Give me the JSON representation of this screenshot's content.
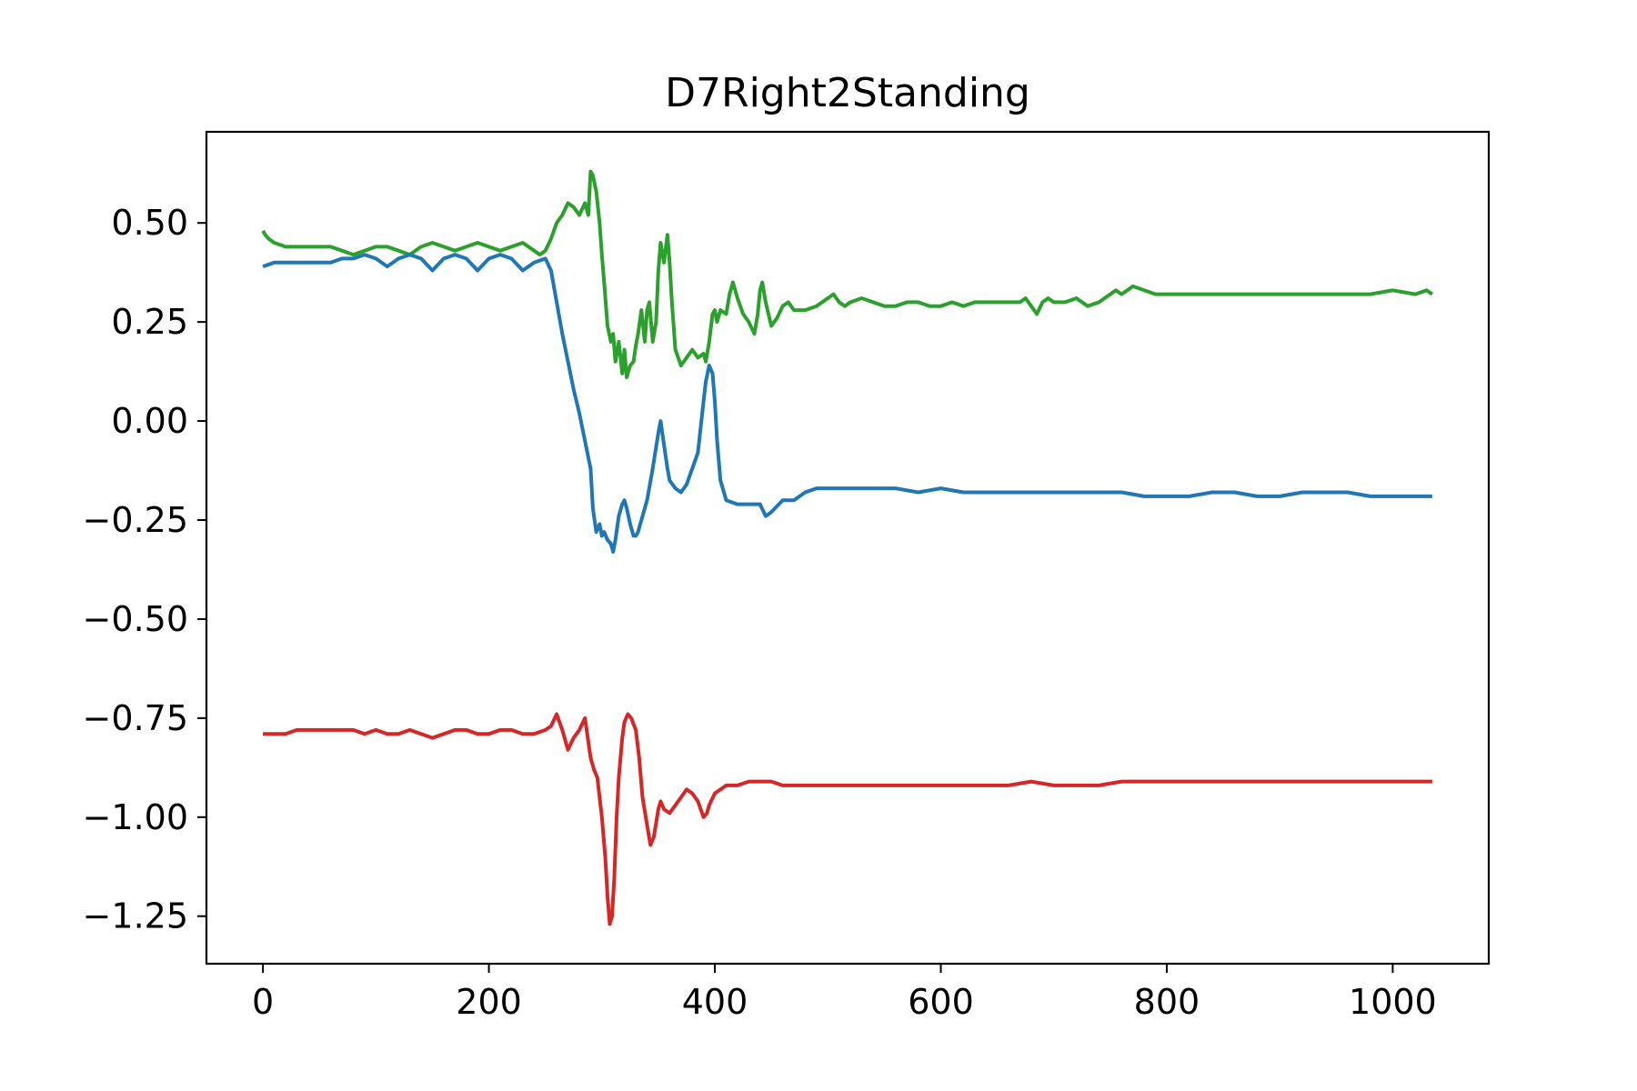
{
  "chart_data": {
    "type": "line",
    "title": "D7Right2Standing",
    "xlabel": "",
    "ylabel": "",
    "xlim": [
      -50,
      1085
    ],
    "ylim": [
      -1.37,
      0.73
    ],
    "grid": false,
    "legend": "none",
    "x_ticks": [
      {
        "value": 0,
        "label": "0"
      },
      {
        "value": 200,
        "label": "200"
      },
      {
        "value": 400,
        "label": "400"
      },
      {
        "value": 600,
        "label": "600"
      },
      {
        "value": 800,
        "label": "800"
      },
      {
        "value": 1000,
        "label": "1000"
      }
    ],
    "y_ticks": [
      {
        "value": 0.5,
        "label": "0.50"
      },
      {
        "value": 0.25,
        "label": "0.25"
      },
      {
        "value": 0.0,
        "label": "0.00"
      },
      {
        "value": -0.25,
        "label": "−0.25"
      },
      {
        "value": -0.5,
        "label": "−0.50"
      },
      {
        "value": -0.75,
        "label": "−0.75"
      },
      {
        "value": -1.0,
        "label": "−1.00"
      },
      {
        "value": -1.25,
        "label": "−1.25"
      }
    ],
    "series": [
      {
        "color": "#2ca02c",
        "x": [
          0,
          2,
          5,
          10,
          20,
          30,
          40,
          50,
          60,
          70,
          80,
          90,
          100,
          110,
          120,
          130,
          140,
          150,
          160,
          170,
          180,
          190,
          200,
          210,
          220,
          230,
          240,
          245,
          250,
          255,
          260,
          265,
          270,
          275,
          280,
          285,
          288,
          290,
          292,
          295,
          298,
          300,
          302,
          305,
          308,
          310,
          312,
          315,
          318,
          320,
          322,
          325,
          328,
          330,
          332,
          335,
          338,
          340,
          342,
          345,
          348,
          350,
          352,
          355,
          358,
          360,
          362,
          365,
          370,
          375,
          380,
          385,
          390,
          392,
          395,
          398,
          400,
          402,
          405,
          410,
          413,
          416,
          420,
          425,
          430,
          435,
          438,
          440,
          442,
          445,
          450,
          455,
          460,
          465,
          470,
          480,
          490,
          500,
          505,
          510,
          515,
          520,
          530,
          540,
          550,
          560,
          570,
          580,
          590,
          600,
          610,
          620,
          630,
          640,
          650,
          660,
          670,
          675,
          680,
          685,
          690,
          695,
          700,
          710,
          720,
          730,
          740,
          750,
          755,
          760,
          770,
          780,
          790,
          800,
          820,
          840,
          860,
          880,
          900,
          920,
          940,
          960,
          980,
          1000,
          1020,
          1030,
          1035
        ],
        "y": [
          0.48,
          0.47,
          0.46,
          0.45,
          0.44,
          0.44,
          0.44,
          0.44,
          0.44,
          0.43,
          0.42,
          0.43,
          0.44,
          0.44,
          0.43,
          0.42,
          0.44,
          0.45,
          0.44,
          0.43,
          0.44,
          0.45,
          0.44,
          0.43,
          0.44,
          0.45,
          0.43,
          0.42,
          0.43,
          0.46,
          0.5,
          0.52,
          0.55,
          0.54,
          0.52,
          0.55,
          0.52,
          0.63,
          0.62,
          0.58,
          0.5,
          0.42,
          0.35,
          0.24,
          0.2,
          0.22,
          0.15,
          0.2,
          0.12,
          0.18,
          0.11,
          0.14,
          0.15,
          0.19,
          0.22,
          0.28,
          0.2,
          0.28,
          0.3,
          0.2,
          0.25,
          0.38,
          0.45,
          0.4,
          0.47,
          0.4,
          0.3,
          0.18,
          0.14,
          0.16,
          0.18,
          0.16,
          0.17,
          0.15,
          0.2,
          0.27,
          0.28,
          0.25,
          0.28,
          0.27,
          0.32,
          0.35,
          0.31,
          0.27,
          0.25,
          0.22,
          0.27,
          0.33,
          0.35,
          0.3,
          0.24,
          0.26,
          0.29,
          0.3,
          0.28,
          0.28,
          0.29,
          0.31,
          0.32,
          0.3,
          0.29,
          0.3,
          0.31,
          0.3,
          0.29,
          0.29,
          0.3,
          0.3,
          0.29,
          0.29,
          0.3,
          0.29,
          0.3,
          0.3,
          0.3,
          0.3,
          0.3,
          0.31,
          0.29,
          0.27,
          0.3,
          0.31,
          0.3,
          0.3,
          0.31,
          0.29,
          0.3,
          0.32,
          0.33,
          0.32,
          0.34,
          0.33,
          0.32,
          0.32,
          0.32,
          0.32,
          0.32,
          0.32,
          0.32,
          0.32,
          0.32,
          0.32,
          0.32,
          0.33,
          0.32,
          0.33,
          0.32
        ]
      },
      {
        "color": "#1f77b4",
        "x": [
          0,
          10,
          20,
          30,
          40,
          50,
          60,
          70,
          80,
          90,
          100,
          110,
          120,
          130,
          140,
          150,
          160,
          170,
          180,
          190,
          200,
          210,
          220,
          230,
          240,
          250,
          255,
          260,
          265,
          270,
          275,
          280,
          285,
          290,
          292,
          295,
          298,
          300,
          302,
          305,
          308,
          310,
          312,
          315,
          318,
          320,
          322,
          325,
          328,
          330,
          332,
          335,
          338,
          340,
          345,
          350,
          352,
          355,
          358,
          360,
          365,
          370,
          375,
          380,
          385,
          390,
          392,
          395,
          398,
          400,
          402,
          405,
          410,
          420,
          430,
          440,
          445,
          450,
          460,
          470,
          480,
          490,
          500,
          510,
          520,
          530,
          540,
          560,
          580,
          600,
          620,
          640,
          660,
          680,
          690,
          700,
          720,
          740,
          760,
          780,
          800,
          820,
          840,
          860,
          880,
          900,
          920,
          940,
          960,
          980,
          1000,
          1020,
          1035
        ],
        "y": [
          0.39,
          0.4,
          0.4,
          0.4,
          0.4,
          0.4,
          0.4,
          0.41,
          0.41,
          0.42,
          0.41,
          0.39,
          0.41,
          0.42,
          0.41,
          0.38,
          0.41,
          0.42,
          0.41,
          0.38,
          0.41,
          0.42,
          0.41,
          0.38,
          0.4,
          0.41,
          0.38,
          0.3,
          0.22,
          0.15,
          0.08,
          0.02,
          -0.05,
          -0.12,
          -0.22,
          -0.28,
          -0.26,
          -0.29,
          -0.28,
          -0.3,
          -0.31,
          -0.33,
          -0.3,
          -0.24,
          -0.21,
          -0.2,
          -0.22,
          -0.26,
          -0.29,
          -0.29,
          -0.28,
          -0.25,
          -0.22,
          -0.2,
          -0.12,
          -0.03,
          0.0,
          -0.06,
          -0.12,
          -0.15,
          -0.17,
          -0.18,
          -0.16,
          -0.12,
          -0.08,
          0.05,
          0.1,
          0.14,
          0.12,
          0.05,
          -0.05,
          -0.15,
          -0.2,
          -0.21,
          -0.21,
          -0.21,
          -0.24,
          -0.23,
          -0.2,
          -0.2,
          -0.18,
          -0.17,
          -0.17,
          -0.17,
          -0.17,
          -0.17,
          -0.17,
          -0.17,
          -0.18,
          -0.17,
          -0.18,
          -0.18,
          -0.18,
          -0.18,
          -0.18,
          -0.18,
          -0.18,
          -0.18,
          -0.18,
          -0.19,
          -0.19,
          -0.19,
          -0.18,
          -0.18,
          -0.19,
          -0.19,
          -0.18,
          -0.18,
          -0.18,
          -0.19,
          -0.19,
          -0.19,
          -0.19
        ]
      },
      {
        "color": "#d62728",
        "x": [
          0,
          5,
          10,
          20,
          30,
          40,
          50,
          60,
          70,
          80,
          90,
          100,
          110,
          120,
          130,
          140,
          150,
          160,
          170,
          180,
          190,
          200,
          210,
          220,
          230,
          240,
          250,
          255,
          260,
          265,
          270,
          275,
          280,
          285,
          290,
          293,
          296,
          300,
          303,
          305,
          307,
          309,
          311,
          313,
          315,
          318,
          320,
          323,
          326,
          330,
          333,
          336,
          340,
          343,
          346,
          350,
          352,
          355,
          360,
          365,
          370,
          375,
          380,
          385,
          390,
          393,
          395,
          400,
          405,
          410,
          420,
          430,
          440,
          450,
          460,
          470,
          480,
          500,
          520,
          540,
          560,
          580,
          600,
          620,
          640,
          660,
          680,
          700,
          720,
          740,
          760,
          780,
          800,
          820,
          840,
          860,
          880,
          900,
          920,
          940,
          960,
          980,
          1000,
          1020,
          1035
        ],
        "y": [
          -0.79,
          -0.79,
          -0.79,
          -0.79,
          -0.78,
          -0.78,
          -0.78,
          -0.78,
          -0.78,
          -0.78,
          -0.79,
          -0.78,
          -0.79,
          -0.79,
          -0.78,
          -0.79,
          -0.8,
          -0.79,
          -0.78,
          -0.78,
          -0.79,
          -0.79,
          -0.78,
          -0.78,
          -0.79,
          -0.79,
          -0.78,
          -0.77,
          -0.74,
          -0.78,
          -0.83,
          -0.8,
          -0.78,
          -0.75,
          -0.85,
          -0.88,
          -0.9,
          -1.0,
          -1.1,
          -1.2,
          -1.27,
          -1.25,
          -1.15,
          -1.0,
          -0.9,
          -0.8,
          -0.76,
          -0.74,
          -0.75,
          -0.78,
          -0.85,
          -0.95,
          -1.02,
          -1.07,
          -1.05,
          -0.98,
          -0.96,
          -0.98,
          -0.99,
          -0.97,
          -0.95,
          -0.93,
          -0.94,
          -0.96,
          -1.0,
          -0.99,
          -0.97,
          -0.94,
          -0.93,
          -0.92,
          -0.92,
          -0.91,
          -0.91,
          -0.91,
          -0.92,
          -0.92,
          -0.92,
          -0.92,
          -0.92,
          -0.92,
          -0.92,
          -0.92,
          -0.92,
          -0.92,
          -0.92,
          -0.92,
          -0.91,
          -0.92,
          -0.92,
          -0.92,
          -0.91,
          -0.91,
          -0.91,
          -0.91,
          -0.91,
          -0.91,
          -0.91,
          -0.91,
          -0.91,
          -0.91,
          -0.91,
          -0.91,
          -0.91,
          -0.91,
          -0.91
        ]
      }
    ]
  }
}
